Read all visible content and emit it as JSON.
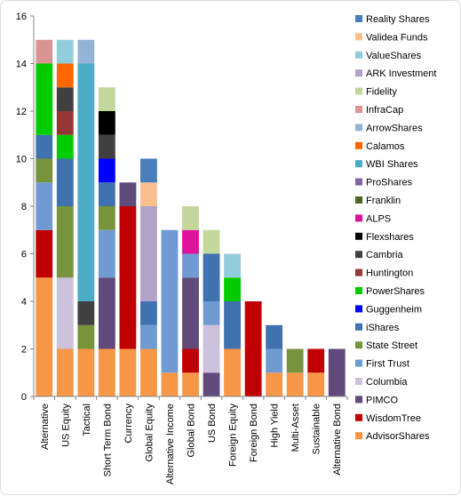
{
  "chart_data": {
    "type": "bar",
    "stacked": true,
    "ylim": [
      0,
      16
    ],
    "y_ticks": [
      "0",
      "2",
      "4",
      "6",
      "8",
      "10",
      "12",
      "14",
      "16"
    ],
    "grid": false,
    "legend_position": "right",
    "categories": [
      "Alternative",
      "US Equity",
      "Tactical",
      "Short Term Bond",
      "Currency",
      "Global Equity",
      "Alternative Income",
      "Global Bond",
      "US Bond",
      "Foreign Equity",
      "Foreign Bond",
      "High Yield",
      "Multi-Asset",
      "Sustainable",
      "Alternative Bond"
    ],
    "series": [
      {
        "name": "AdvisorShares",
        "color": "#F79646",
        "values": [
          5,
          2,
          2,
          2,
          2,
          2,
          1,
          1,
          0,
          2,
          0,
          1,
          1,
          1,
          0
        ]
      },
      {
        "name": "WisdomTree",
        "color": "#C00000",
        "values": [
          2,
          0,
          0,
          0,
          6,
          0,
          0,
          1,
          0,
          0,
          4,
          0,
          0,
          1,
          0
        ]
      },
      {
        "name": "PIMCO",
        "color": "#604A7B",
        "values": [
          0,
          0,
          0,
          3,
          1,
          0,
          0,
          3,
          1,
          0,
          0,
          0,
          0,
          0,
          2
        ]
      },
      {
        "name": "Columbia",
        "color": "#CCC1DA",
        "values": [
          0,
          3,
          0,
          0,
          0,
          0,
          0,
          0,
          2,
          0,
          0,
          0,
          0,
          0,
          0
        ]
      },
      {
        "name": "First Trust",
        "color": "#6F9BD2",
        "values": [
          2,
          0,
          0,
          2,
          0,
          1,
          6,
          1,
          1,
          0,
          0,
          1,
          0,
          0,
          0
        ]
      },
      {
        "name": "State Street",
        "color": "#77933C",
        "values": [
          1,
          3,
          1,
          1,
          0,
          0,
          0,
          0,
          0,
          0,
          0,
          0,
          1,
          0,
          0
        ]
      },
      {
        "name": "iShares",
        "color": "#3F72AF",
        "values": [
          1,
          2,
          0,
          1,
          0,
          1,
          0,
          0,
          2,
          2,
          0,
          1,
          0,
          0,
          0
        ]
      },
      {
        "name": "Guggenheim",
        "color": "#0000FF",
        "values": [
          0,
          0,
          0,
          1,
          0,
          0,
          0,
          0,
          0,
          0,
          0,
          0,
          0,
          0,
          0
        ]
      },
      {
        "name": "PowerShares",
        "color": "#00CC00",
        "values": [
          3,
          1,
          0,
          0,
          0,
          0,
          0,
          0,
          0,
          1,
          0,
          0,
          0,
          0,
          0
        ]
      },
      {
        "name": "Huntington",
        "color": "#943634",
        "values": [
          0,
          1,
          0,
          0,
          0,
          0,
          0,
          0,
          0,
          0,
          0,
          0,
          0,
          0,
          0
        ]
      },
      {
        "name": "Cambria",
        "color": "#404040",
        "values": [
          0,
          1,
          1,
          1,
          0,
          0,
          0,
          0,
          0,
          0,
          0,
          0,
          0,
          0,
          0
        ]
      },
      {
        "name": "Flexshares",
        "color": "#000000",
        "values": [
          0,
          0,
          0,
          1,
          0,
          0,
          0,
          0,
          0,
          0,
          0,
          0,
          0,
          0,
          0
        ]
      },
      {
        "name": "ALPS",
        "color": "#E0119D",
        "values": [
          0,
          0,
          0,
          0,
          0,
          0,
          0,
          1,
          0,
          0,
          0,
          0,
          0,
          0,
          0
        ]
      },
      {
        "name": "Franklin",
        "color": "#4F6228",
        "values": [
          0,
          0,
          0,
          0,
          0,
          0,
          0,
          0,
          0,
          0,
          0,
          0,
          0,
          0,
          0
        ]
      },
      {
        "name": "ProShares",
        "color": "#8064A2",
        "values": [
          0,
          0,
          0,
          0,
          0,
          0,
          0,
          0,
          0,
          0,
          0,
          0,
          0,
          0,
          0
        ]
      },
      {
        "name": "WBI Shares",
        "color": "#4BACC6",
        "values": [
          0,
          0,
          10,
          0,
          0,
          0,
          0,
          0,
          0,
          0,
          0,
          0,
          0,
          0,
          0
        ]
      },
      {
        "name": "Calamos",
        "color": "#FF6600",
        "values": [
          0,
          1,
          0,
          0,
          0,
          0,
          0,
          0,
          0,
          0,
          0,
          0,
          0,
          0,
          0
        ]
      },
      {
        "name": "ArrowShares",
        "color": "#95B3D7",
        "values": [
          0,
          0,
          1,
          0,
          0,
          0,
          0,
          0,
          0,
          0,
          0,
          0,
          0,
          0,
          0
        ]
      },
      {
        "name": "InfraCap",
        "color": "#D99594",
        "values": [
          1,
          0,
          0,
          0,
          0,
          0,
          0,
          0,
          0,
          0,
          0,
          0,
          0,
          0,
          0
        ]
      },
      {
        "name": "Fidelity",
        "color": "#C3D69B",
        "values": [
          0,
          0,
          0,
          1,
          0,
          0,
          0,
          1,
          1,
          0,
          0,
          0,
          0,
          0,
          0
        ]
      },
      {
        "name": "ARK Investment",
        "color": "#B2A2C7",
        "values": [
          0,
          0,
          0,
          0,
          0,
          4,
          0,
          0,
          0,
          0,
          0,
          0,
          0,
          0,
          0
        ]
      },
      {
        "name": "ValueShares",
        "color": "#92CDDC",
        "values": [
          0,
          1,
          0,
          0,
          0,
          0,
          0,
          0,
          0,
          1,
          0,
          0,
          0,
          0,
          0
        ]
      },
      {
        "name": "Validea Funds",
        "color": "#FABF8F",
        "values": [
          0,
          0,
          0,
          0,
          0,
          1,
          0,
          0,
          0,
          0,
          0,
          0,
          0,
          0,
          0
        ]
      },
      {
        "name": "Reality Shares",
        "color": "#4A7EBB",
        "values": [
          0,
          0,
          0,
          0,
          0,
          1,
          0,
          0,
          0,
          0,
          0,
          0,
          0,
          0,
          0
        ]
      }
    ],
    "legend_order": [
      "Reality Shares",
      "Validea Funds",
      "ValueShares",
      "ARK Investment",
      "Fidelity",
      "InfraCap",
      "ArrowShares",
      "Calamos",
      "WBI Shares",
      "ProShares",
      "Franklin",
      "ALPS",
      "Flexshares",
      "Cambria",
      "Huntington",
      "PowerShares",
      "Guggenheim",
      "iShares",
      "State Street",
      "First Trust",
      "Columbia",
      "PIMCO",
      "WisdomTree",
      "AdvisorShares"
    ]
  }
}
